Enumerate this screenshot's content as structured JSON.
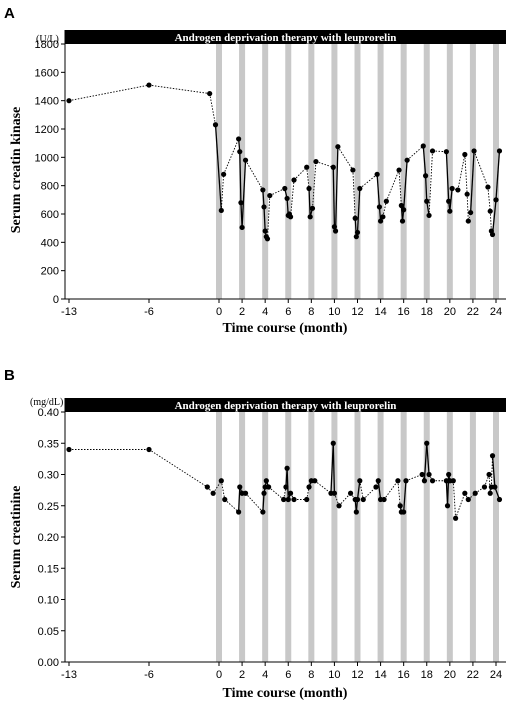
{
  "chart_data": [
    {
      "panel": "A",
      "type": "line",
      "banner": "Androgen deprivation therapy with leuprorelin",
      "unit": "(U/L)",
      "ylabel": "Serum creatin kinase",
      "xlabel": "Time course (month)",
      "ylim": [
        0,
        1800
      ],
      "yticks": [
        0,
        200,
        400,
        600,
        800,
        1000,
        1200,
        1400,
        1600,
        1800
      ],
      "xticks": [
        -13,
        -6,
        0,
        2,
        4,
        6,
        8,
        10,
        12,
        14,
        16,
        18,
        20,
        22,
        24
      ],
      "injection_months": [
        0,
        2,
        4,
        6,
        8,
        10,
        12,
        14,
        16,
        18,
        20,
        22,
        24
      ],
      "grid": false,
      "points": [
        [
          -13,
          1400
        ],
        [
          -6,
          1510
        ],
        [
          -0.8,
          1450
        ],
        [
          -0.3,
          1230
        ],
        [
          0.2,
          625
        ],
        [
          0.4,
          880
        ],
        [
          1.7,
          1130
        ],
        [
          1.8,
          1040
        ],
        [
          1.9,
          680
        ],
        [
          2.0,
          505
        ],
        [
          2.3,
          980
        ],
        [
          3.8,
          770
        ],
        [
          3.9,
          650
        ],
        [
          4.0,
          480
        ],
        [
          4.1,
          440
        ],
        [
          4.2,
          425
        ],
        [
          4.4,
          730
        ],
        [
          5.7,
          780
        ],
        [
          5.9,
          710
        ],
        [
          6.0,
          590
        ],
        [
          6.1,
          600
        ],
        [
          6.2,
          580
        ],
        [
          6.5,
          840
        ],
        [
          7.6,
          930
        ],
        [
          7.8,
          780
        ],
        [
          7.9,
          580
        ],
        [
          8.1,
          640
        ],
        [
          8.4,
          970
        ],
        [
          9.9,
          930
        ],
        [
          10.0,
          510
        ],
        [
          10.1,
          480
        ],
        [
          10.3,
          1075
        ],
        [
          11.6,
          910
        ],
        [
          11.8,
          570
        ],
        [
          11.9,
          440
        ],
        [
          12.0,
          470
        ],
        [
          12.2,
          780
        ],
        [
          13.7,
          880
        ],
        [
          13.9,
          650
        ],
        [
          14.0,
          550
        ],
        [
          14.2,
          580
        ],
        [
          14.5,
          690
        ],
        [
          15.6,
          910
        ],
        [
          15.8,
          660
        ],
        [
          15.9,
          550
        ],
        [
          16.0,
          630
        ],
        [
          16.3,
          980
        ],
        [
          17.7,
          1080
        ],
        [
          17.9,
          870
        ],
        [
          18.0,
          690
        ],
        [
          18.2,
          590
        ],
        [
          18.5,
          1045
        ],
        [
          19.7,
          1040
        ],
        [
          19.9,
          690
        ],
        [
          20.0,
          620
        ],
        [
          20.2,
          780
        ],
        [
          20.7,
          770
        ],
        [
          21.3,
          1020
        ],
        [
          21.5,
          740
        ],
        [
          21.6,
          550
        ],
        [
          21.8,
          610
        ],
        [
          22.1,
          1045
        ],
        [
          23.3,
          790
        ],
        [
          23.5,
          620
        ],
        [
          23.6,
          480
        ],
        [
          23.7,
          455
        ],
        [
          24.0,
          700
        ],
        [
          24.3,
          1045
        ]
      ]
    },
    {
      "panel": "B",
      "type": "line",
      "banner": "Androgen deprivation therapy with leuprorelin",
      "unit": "(mg/dL)",
      "ylabel": "Serum creatinine",
      "xlabel": "Time course (month)",
      "ylim": [
        0,
        0.4
      ],
      "yticks": [
        "0.00",
        "0.05",
        "0.10",
        "0.15",
        "0.20",
        "0.25",
        "0.30",
        "0.35",
        "0.40"
      ],
      "xticks": [
        -13,
        -6,
        0,
        2,
        4,
        6,
        8,
        10,
        12,
        14,
        16,
        18,
        20,
        22,
        24
      ],
      "injection_months": [
        0,
        2,
        4,
        6,
        8,
        10,
        12,
        14,
        16,
        18,
        20,
        22,
        24
      ],
      "grid": false,
      "points": [
        [
          -13,
          0.34
        ],
        [
          -6,
          0.34
        ],
        [
          -1.0,
          0.28
        ],
        [
          -0.5,
          0.27
        ],
        [
          0.2,
          0.29
        ],
        [
          0.5,
          0.26
        ],
        [
          1.7,
          0.24
        ],
        [
          1.8,
          0.28
        ],
        [
          2.0,
          0.27
        ],
        [
          2.3,
          0.27
        ],
        [
          3.8,
          0.24
        ],
        [
          3.9,
          0.27
        ],
        [
          4.0,
          0.28
        ],
        [
          4.1,
          0.29
        ],
        [
          4.3,
          0.28
        ],
        [
          5.6,
          0.26
        ],
        [
          5.8,
          0.28
        ],
        [
          5.9,
          0.31
        ],
        [
          6.0,
          0.26
        ],
        [
          6.2,
          0.27
        ],
        [
          6.5,
          0.26
        ],
        [
          7.6,
          0.26
        ],
        [
          7.8,
          0.28
        ],
        [
          8.0,
          0.29
        ],
        [
          8.3,
          0.29
        ],
        [
          9.7,
          0.27
        ],
        [
          9.9,
          0.35
        ],
        [
          10.0,
          0.27
        ],
        [
          10.4,
          0.25
        ],
        [
          11.4,
          0.27
        ],
        [
          11.8,
          0.26
        ],
        [
          11.9,
          0.24
        ],
        [
          12.0,
          0.26
        ],
        [
          12.2,
          0.29
        ],
        [
          12.5,
          0.26
        ],
        [
          13.6,
          0.28
        ],
        [
          13.8,
          0.29
        ],
        [
          14.0,
          0.26
        ],
        [
          14.3,
          0.26
        ],
        [
          15.5,
          0.29
        ],
        [
          15.7,
          0.25
        ],
        [
          15.8,
          0.24
        ],
        [
          16.0,
          0.24
        ],
        [
          16.2,
          0.29
        ],
        [
          17.6,
          0.3
        ],
        [
          17.8,
          0.29
        ],
        [
          18.0,
          0.35
        ],
        [
          18.2,
          0.3
        ],
        [
          18.5,
          0.29
        ],
        [
          19.7,
          0.29
        ],
        [
          19.8,
          0.25
        ],
        [
          19.9,
          0.3
        ],
        [
          20.0,
          0.29
        ],
        [
          20.3,
          0.29
        ],
        [
          20.5,
          0.23
        ],
        [
          21.3,
          0.27
        ],
        [
          21.6,
          0.26
        ],
        [
          22.2,
          0.27
        ],
        [
          23.0,
          0.28
        ],
        [
          23.4,
          0.3
        ],
        [
          23.5,
          0.27
        ],
        [
          23.6,
          0.28
        ],
        [
          23.7,
          0.33
        ],
        [
          23.9,
          0.28
        ],
        [
          24.3,
          0.26
        ]
      ]
    }
  ]
}
